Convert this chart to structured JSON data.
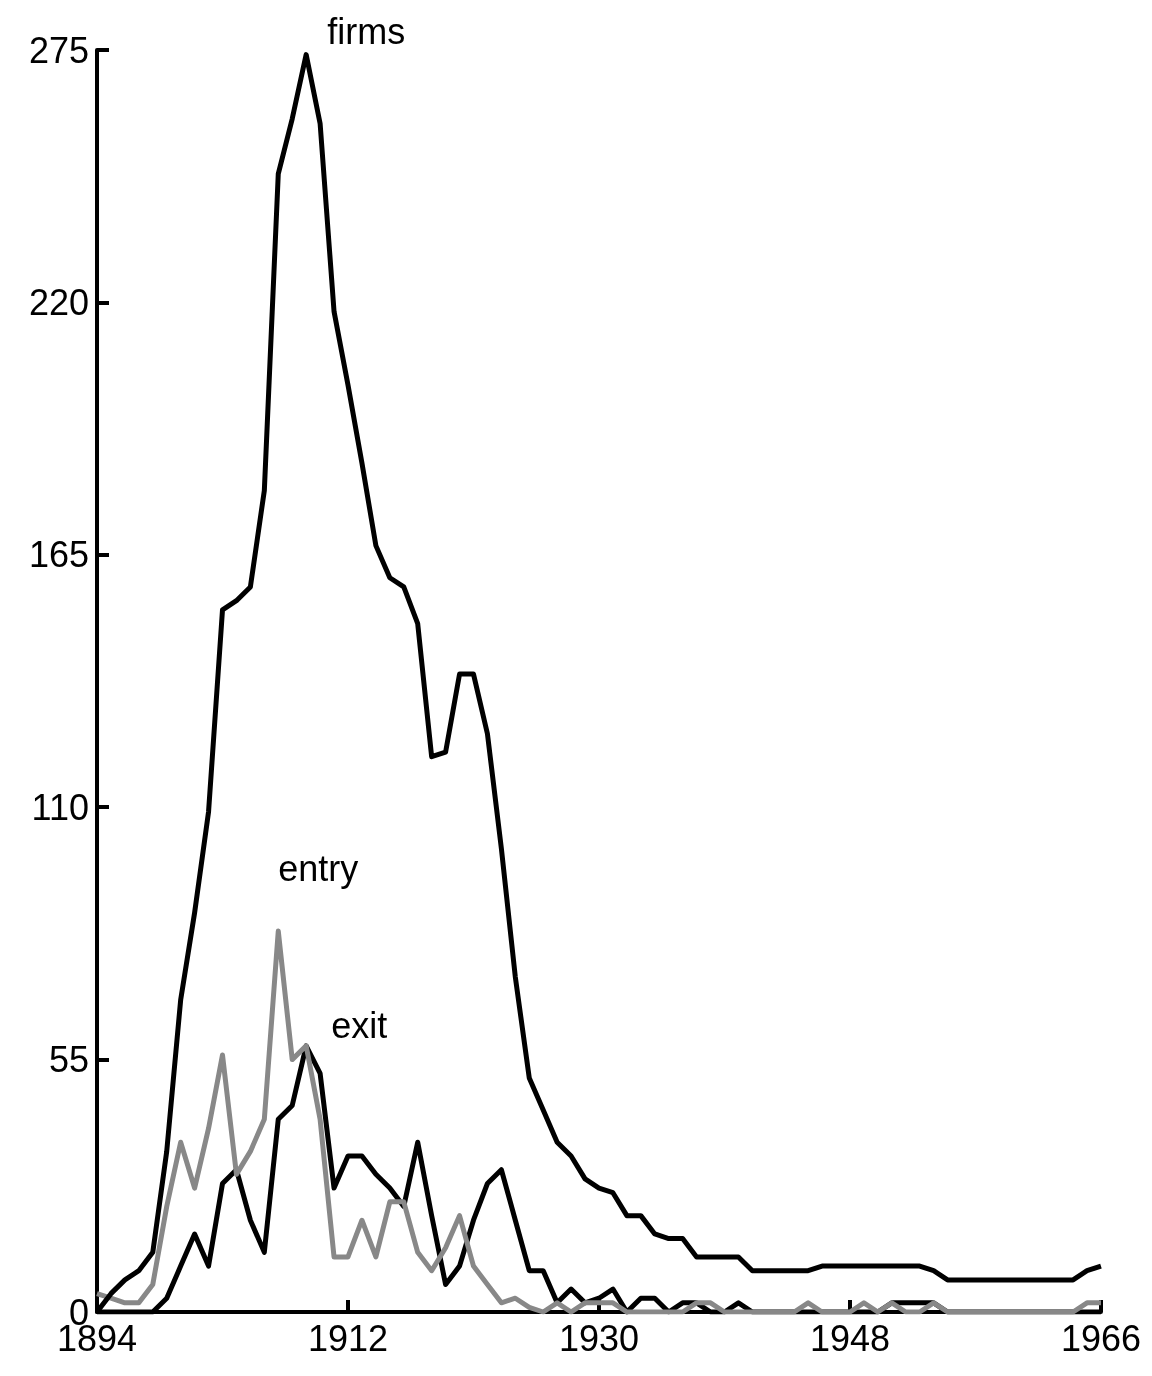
{
  "chart_data": {
    "type": "line",
    "x": [
      1894,
      1895,
      1896,
      1897,
      1898,
      1899,
      1900,
      1901,
      1902,
      1903,
      1904,
      1905,
      1906,
      1907,
      1908,
      1909,
      1910,
      1911,
      1912,
      1913,
      1914,
      1915,
      1916,
      1917,
      1918,
      1919,
      1920,
      1921,
      1922,
      1923,
      1924,
      1925,
      1926,
      1927,
      1928,
      1929,
      1930,
      1931,
      1932,
      1933,
      1934,
      1935,
      1936,
      1937,
      1938,
      1939,
      1940,
      1941,
      1942,
      1943,
      1944,
      1945,
      1946,
      1947,
      1948,
      1949,
      1950,
      1951,
      1952,
      1953,
      1954,
      1955,
      1956,
      1957,
      1958,
      1959,
      1960,
      1961,
      1962,
      1963,
      1964,
      1965,
      1966
    ],
    "series": [
      {
        "name": "firms",
        "color": "#000000",
        "values": [
          0,
          4,
          7,
          9,
          13,
          35,
          68,
          87,
          109,
          153,
          155,
          158,
          179,
          248,
          260,
          274,
          259,
          218,
          202,
          185,
          167,
          160,
          158,
          150,
          121,
          122,
          139,
          139,
          126,
          101,
          73,
          51,
          44,
          37,
          34,
          29,
          27,
          26,
          21,
          21,
          17,
          16,
          16,
          12,
          12,
          12,
          12,
          9,
          9,
          9,
          9,
          9,
          10,
          10,
          10,
          10,
          10,
          10,
          10,
          10,
          9,
          7,
          7,
          7,
          7,
          7,
          7,
          7,
          7,
          7,
          7,
          9,
          10
        ]
      },
      {
        "name": "entry",
        "color": "#888888",
        "values": [
          4,
          3,
          2,
          2,
          6,
          23,
          37,
          27,
          40,
          56,
          30,
          35,
          42,
          83,
          55,
          58,
          42,
          12,
          12,
          20,
          12,
          24,
          24,
          13,
          9,
          14,
          21,
          10,
          6,
          2,
          3,
          1,
          0,
          2,
          0,
          2,
          2,
          2,
          0,
          0,
          0,
          0,
          0,
          2,
          2,
          0,
          0,
          0,
          0,
          0,
          0,
          2,
          0,
          0,
          0,
          2,
          0,
          2,
          0,
          0,
          2,
          0,
          0,
          0,
          0,
          0,
          0,
          0,
          0,
          0,
          0,
          2,
          2
        ]
      },
      {
        "name": "exit",
        "color": "#000000",
        "values": [
          0,
          0,
          0,
          0,
          0,
          3,
          10,
          17,
          10,
          28,
          31,
          20,
          13,
          42,
          45,
          58,
          52,
          27,
          34,
          34,
          30,
          27,
          23,
          37,
          21,
          6,
          10,
          20,
          28,
          31,
          20,
          9,
          9,
          2,
          5,
          2,
          3,
          5,
          0,
          3,
          3,
          0,
          2,
          2,
          0,
          0,
          2,
          0,
          0,
          0,
          0,
          0,
          0,
          0,
          0,
          0,
          0,
          2,
          2,
          2,
          2,
          0,
          0,
          0,
          0,
          0,
          0,
          0,
          0,
          0,
          0,
          0,
          0
        ]
      }
    ],
    "xlim": [
      1894,
      1966
    ],
    "xticks": [
      1894,
      1912,
      1930,
      1948,
      1966
    ],
    "ylim": [
      0,
      275
    ],
    "yticks": [
      0,
      55,
      110,
      165,
      220,
      275
    ],
    "grid": false,
    "legend": false,
    "marker": "none",
    "line_style": "solid"
  }
}
